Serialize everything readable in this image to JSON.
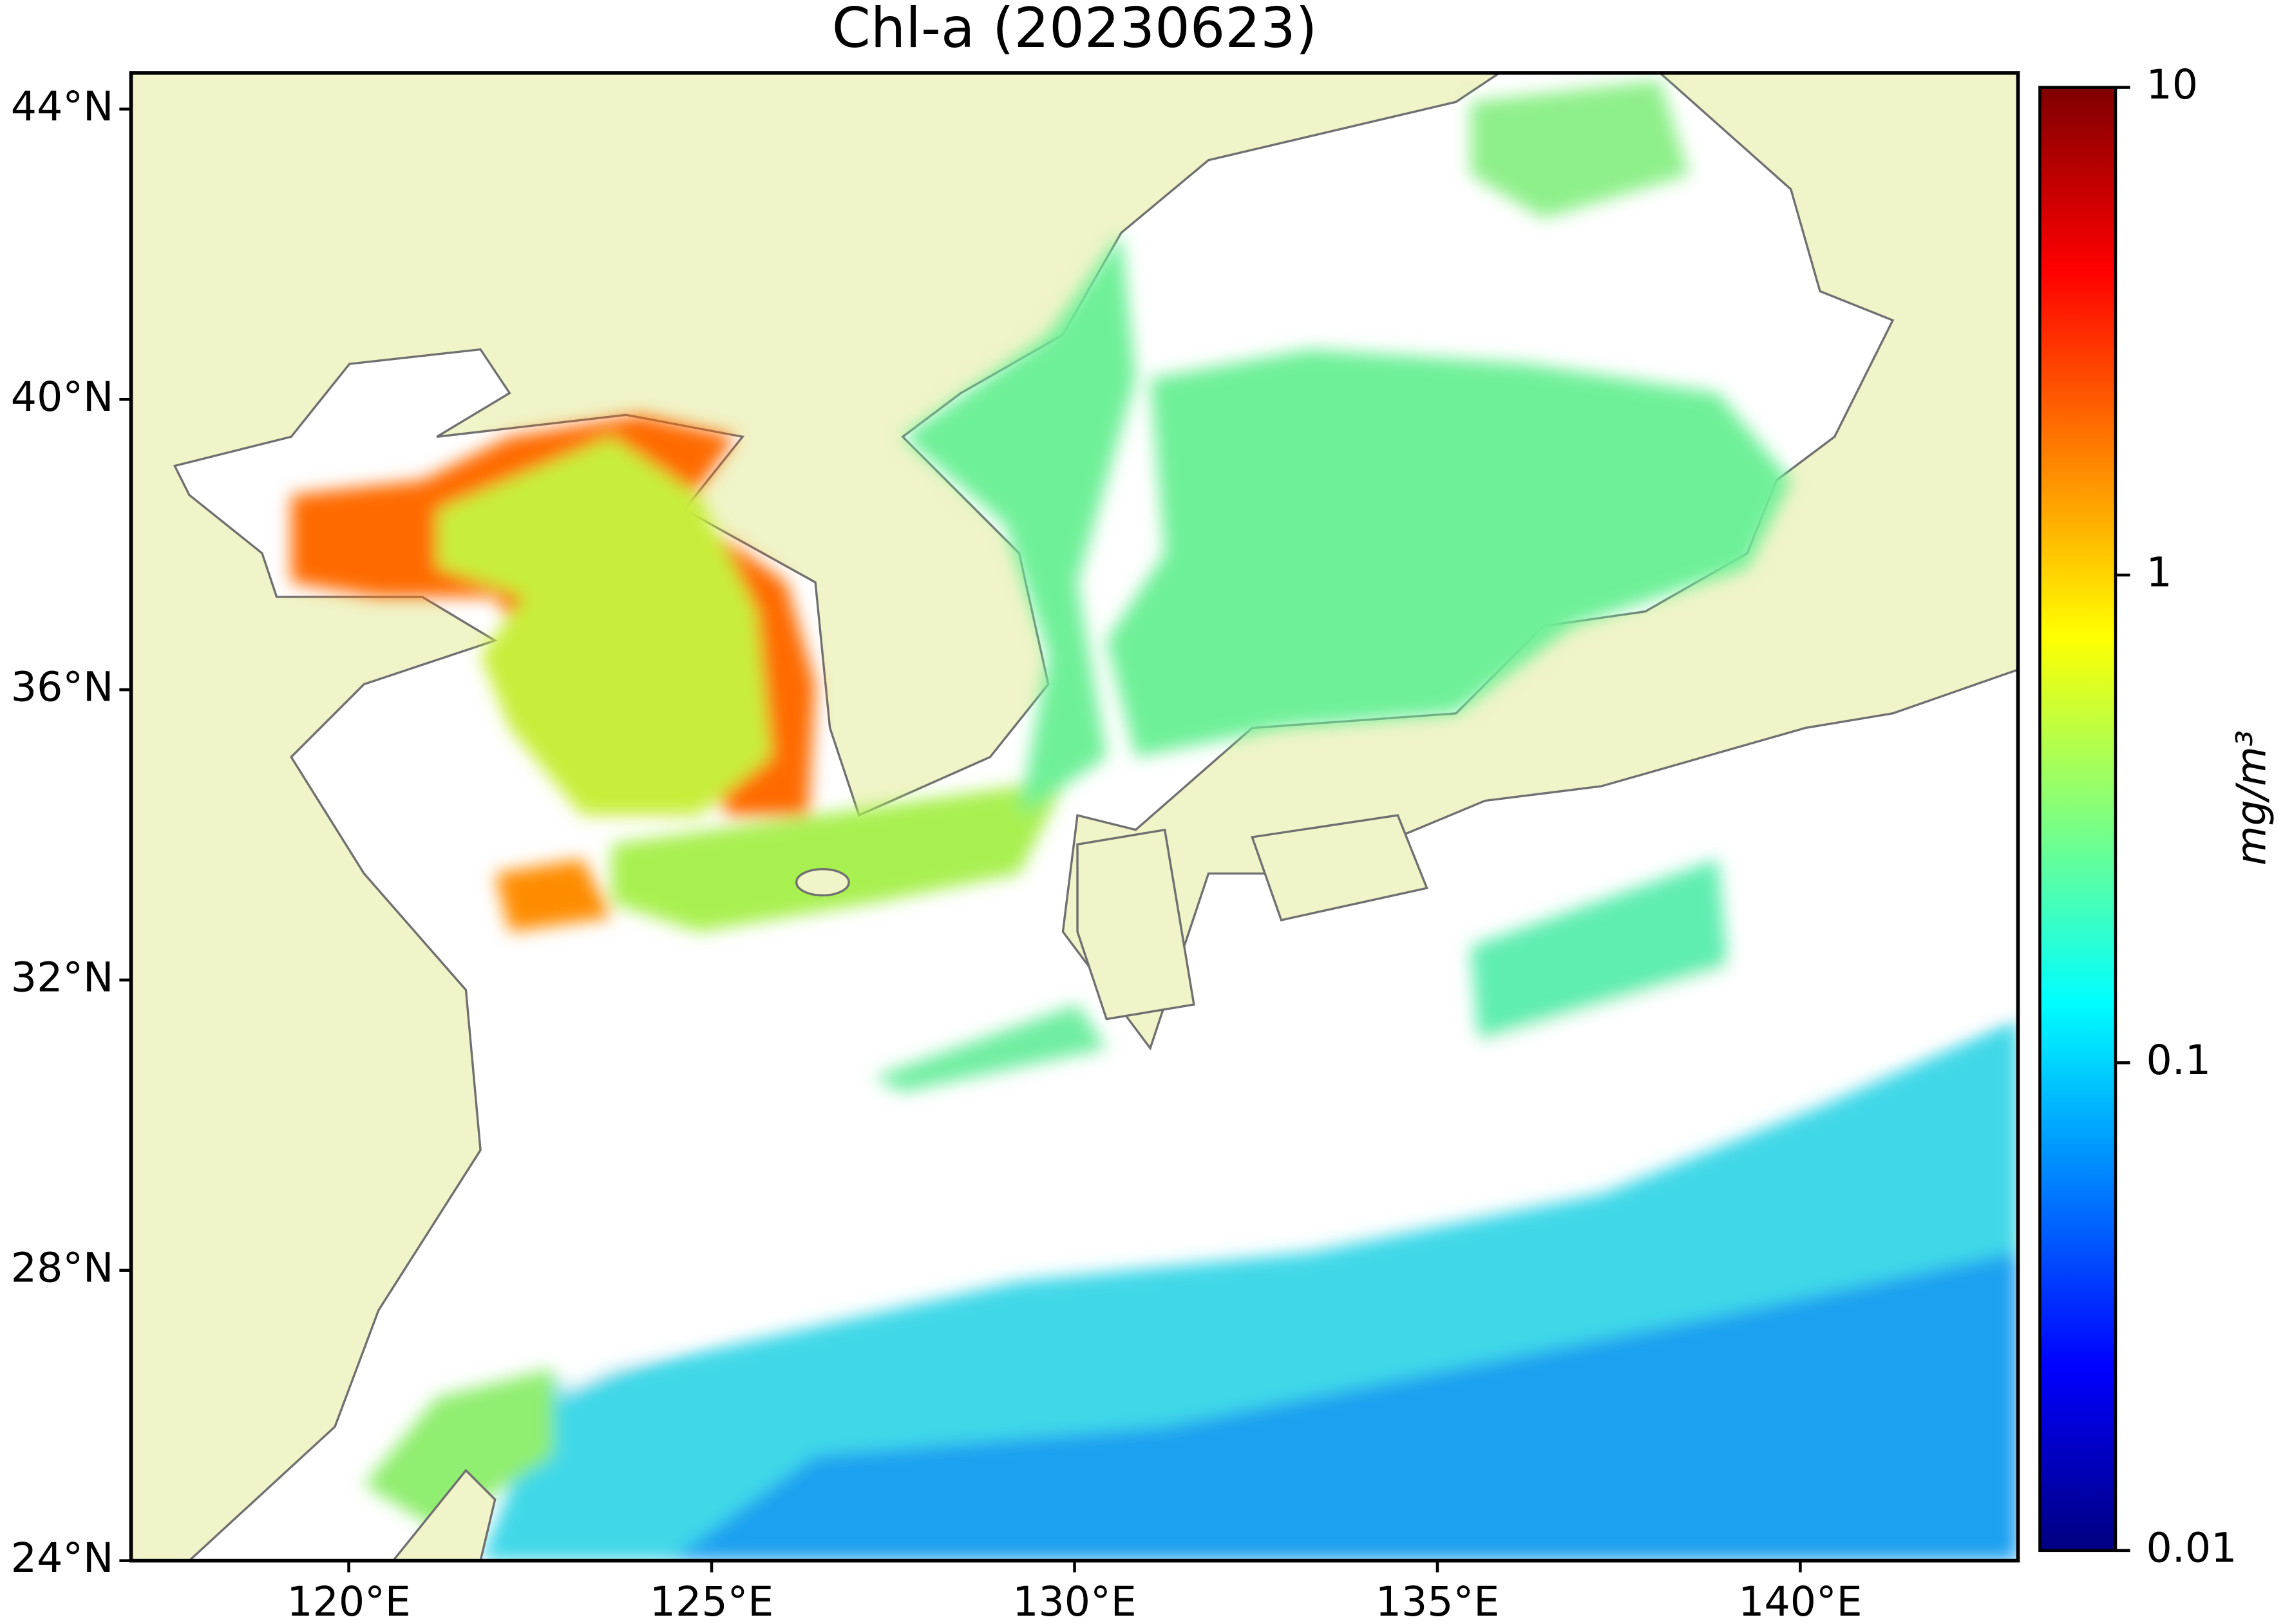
{
  "chart_data": {
    "type": "map",
    "title": "Chl-a (20230623)",
    "xlim": [
      117,
      143
    ],
    "ylim": [
      24,
      44.5
    ],
    "xticks": [
      {
        "value": 120,
        "label": "120°E"
      },
      {
        "value": 125,
        "label": "125°E"
      },
      {
        "value": 130,
        "label": "130°E"
      },
      {
        "value": 135,
        "label": "135°E"
      },
      {
        "value": 140,
        "label": "140°E"
      }
    ],
    "yticks": [
      {
        "value": 24,
        "label": "24°N"
      },
      {
        "value": 28,
        "label": "28°N"
      },
      {
        "value": 32,
        "label": "32°N"
      },
      {
        "value": 36,
        "label": "36°N"
      },
      {
        "value": 40,
        "label": "40°N"
      },
      {
        "value": 44,
        "label": "44°N"
      }
    ],
    "colorbar": {
      "label": "mg/m³",
      "scale": "log",
      "lim": [
        0.01,
        10
      ],
      "ticks": [
        0.01,
        0.1,
        1,
        10
      ],
      "colors": [
        "#00007f",
        "#0000ff",
        "#007fff",
        "#00ffff",
        "#7fff7f",
        "#ffff00",
        "#ff7f00",
        "#ff0000",
        "#7f0000"
      ]
    }
  }
}
